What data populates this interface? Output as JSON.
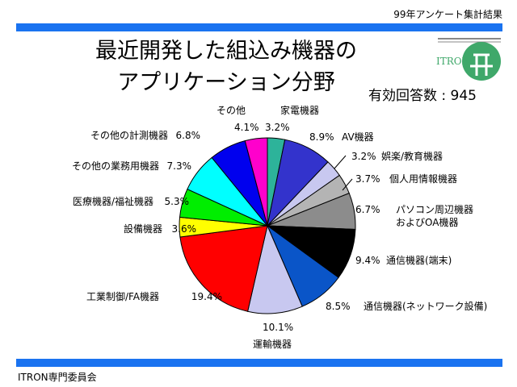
{
  "header": {
    "survey_label": "99年アンケート集計結果"
  },
  "title": {
    "line1": "最近開発した組込み機器の",
    "line2": "アプリケーション分野"
  },
  "respondents": "有効回答数 : 945",
  "footer": {
    "org": "ITRON専門委員会"
  },
  "logo": {
    "text": "ITRON",
    "color": "#3fa86a"
  },
  "chart_data": {
    "type": "pie",
    "title": "最近開発した組込み機器のアプリケーション分野",
    "start_angle_deg": 0,
    "direction": "clockwise",
    "slices": [
      {
        "label": "家電機器",
        "value": 3.2,
        "display": "3.2%",
        "color": "#2db39a"
      },
      {
        "label": "AV機器",
        "value": 8.9,
        "display": "8.9%",
        "color": "#3333cc"
      },
      {
        "label": "娯楽/教育機器",
        "value": 3.2,
        "display": "3.2%",
        "color": "#c8c8f0"
      },
      {
        "label": "個人用情報機器",
        "value": 3.7,
        "display": "3.7%",
        "color": "#b4b4b4"
      },
      {
        "label": "パソコン周辺機器 およびOA機器",
        "value": 6.7,
        "display": "6.7%",
        "color": "#8c8c8c"
      },
      {
        "label": "通信機器(端末)",
        "value": 9.4,
        "display": "9.4%",
        "color": "#000000"
      },
      {
        "label": "通信機器(ネットワーク設備)",
        "value": 8.5,
        "display": "8.5%",
        "color": "#0a55c8"
      },
      {
        "label": "運輸機器",
        "value": 10.1,
        "display": "10.1%",
        "color": "#c8c8f0"
      },
      {
        "label": "工業制御/FA機器",
        "value": 19.4,
        "display": "19.4%",
        "color": "#ff0000"
      },
      {
        "label": "設備機器",
        "value": 3.6,
        "display": "3.6%",
        "color": "#ffff00"
      },
      {
        "label": "医療機器/福祉機器",
        "value": 5.3,
        "display": "5.3%",
        "color": "#00ee00"
      },
      {
        "label": "その他の業務用機器",
        "value": 7.3,
        "display": "7.3%",
        "color": "#00ffff"
      },
      {
        "label": "その他の計測機器",
        "value": 6.8,
        "display": "6.8%",
        "color": "#0000ee"
      },
      {
        "label": "その他",
        "value": 4.1,
        "display": "4.1%",
        "color": "#ff00cc"
      }
    ]
  }
}
